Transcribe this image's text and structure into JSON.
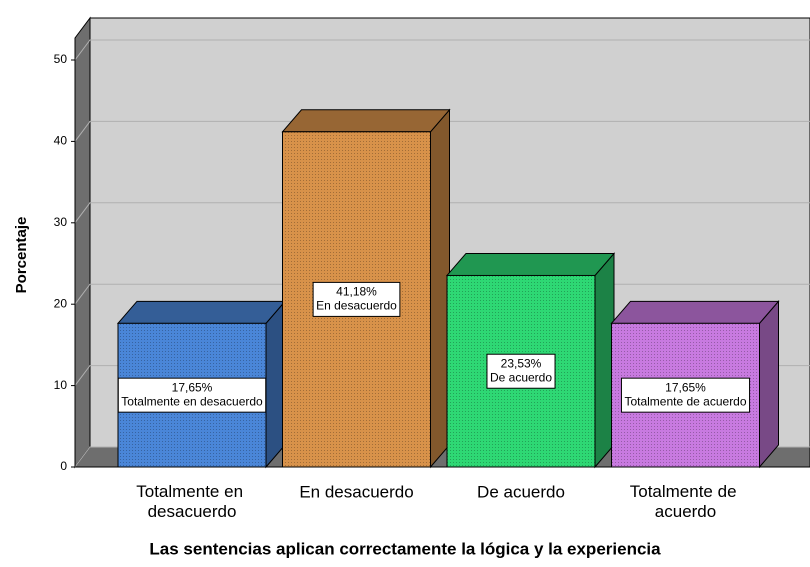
{
  "chart_data": {
    "type": "bar3d",
    "x_label": "Las sentencias aplican correctamente la lógica y la experiencia",
    "y_label": "Porcentaje",
    "categories": [
      "Totalmente en desacuerdo",
      "En desacuerdo",
      "De acuerdo",
      "Totalmente de acuerdo"
    ],
    "values": [
      17.65,
      41.18,
      23.53,
      17.65
    ],
    "value_labels": [
      "17,65%",
      "41,18%",
      "23,53%",
      "17,65%"
    ],
    "colors": [
      "#4a86d8",
      "#d8924a",
      "#2ed874",
      "#c87ae0"
    ],
    "ylim": [
      0,
      50
    ],
    "yticks": [
      0,
      10,
      20,
      30,
      40,
      50
    ],
    "grid": true
  }
}
